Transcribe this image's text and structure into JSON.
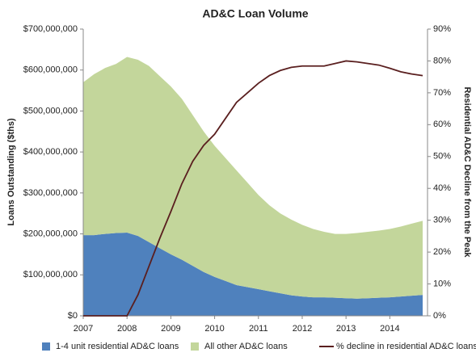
{
  "chart_data": {
    "type": "stacked-area-line",
    "title": "AD&C Loan Volume",
    "y_label": "Loans Outstanding ($ths)",
    "y2_label": "Residential AD&C Decline from the Peak",
    "x": [
      2007,
      2007.25,
      2007.5,
      2007.75,
      2008,
      2008.25,
      2008.5,
      2008.75,
      2009,
      2009.25,
      2009.5,
      2009.75,
      2010,
      2010.25,
      2010.5,
      2010.75,
      2011,
      2011.25,
      2011.5,
      2011.75,
      2012,
      2012.25,
      2012.5,
      2012.75,
      2013,
      2013.25,
      2013.5,
      2013.75,
      2014,
      2014.25,
      2014.5,
      2014.75
    ],
    "xlim": [
      2007,
      2014.75
    ],
    "xticks": [
      2007,
      2008,
      2009,
      2010,
      2011,
      2012,
      2013,
      2014
    ],
    "ylim": [
      0,
      700000000
    ],
    "yticks": [
      {
        "value": 0,
        "label": "$0"
      },
      {
        "value": 100000000,
        "label": "$100,000,000"
      },
      {
        "value": 200000000,
        "label": "$200,000,000"
      },
      {
        "value": 300000000,
        "label": "$300,000,000"
      },
      {
        "value": 400000000,
        "label": "$400,000,000"
      },
      {
        "value": 500000000,
        "label": "$500,000,000"
      },
      {
        "value": 600000000,
        "label": "$600,000,000"
      },
      {
        "value": 700000000,
        "label": "$700,000,000"
      }
    ],
    "y2lim": [
      0,
      90
    ],
    "y2ticks": [
      {
        "value": 0,
        "label": "0%"
      },
      {
        "value": 10,
        "label": "10%"
      },
      {
        "value": 20,
        "label": "20%"
      },
      {
        "value": 30,
        "label": "30%"
      },
      {
        "value": 40,
        "label": "40%"
      },
      {
        "value": 50,
        "label": "50%"
      },
      {
        "value": 60,
        "label": "60%"
      },
      {
        "value": 70,
        "label": "70%"
      },
      {
        "value": 80,
        "label": "80%"
      },
      {
        "value": 90,
        "label": "90%"
      }
    ],
    "series": [
      {
        "name": "1-4 unit residential AD&C loans",
        "color": "#4f81bd",
        "kind": "area",
        "values": [
          197000000,
          197000000,
          200000000,
          202000000,
          203000000,
          195000000,
          180000000,
          165000000,
          150000000,
          137000000,
          122000000,
          107000000,
          95000000,
          85000000,
          75000000,
          70000000,
          65000000,
          60000000,
          55000000,
          50000000,
          47000000,
          45000000,
          45000000,
          44000000,
          43000000,
          42000000,
          43000000,
          44000000,
          45000000,
          47000000,
          49000000,
          51000000
        ]
      },
      {
        "name": "All other AD&C loans",
        "color": "#c3d69b",
        "kind": "area",
        "values": [
          373000000,
          393000000,
          405000000,
          413000000,
          429000000,
          430000000,
          430000000,
          420000000,
          410000000,
          393000000,
          368000000,
          343000000,
          320000000,
          300000000,
          280000000,
          255000000,
          230000000,
          210000000,
          195000000,
          185000000,
          175000000,
          167000000,
          160000000,
          156000000,
          157000000,
          160000000,
          162000000,
          164000000,
          167000000,
          171000000,
          176000000,
          181000000
        ]
      },
      {
        "name": "% decline in residential AD&C loans",
        "color": "#5a1f1f",
        "kind": "line",
        "axis": "y2",
        "values": [
          0,
          0,
          0,
          0,
          0,
          6.6,
          15.5,
          24.4,
          32.7,
          41.4,
          48.5,
          53.5,
          57,
          62,
          67,
          70,
          73,
          75.4,
          77,
          78,
          78.4,
          78.4,
          78.4,
          79.2,
          80,
          79.7,
          79.2,
          78.7,
          77.7,
          76.6,
          75.9,
          75.4
        ]
      }
    ]
  }
}
